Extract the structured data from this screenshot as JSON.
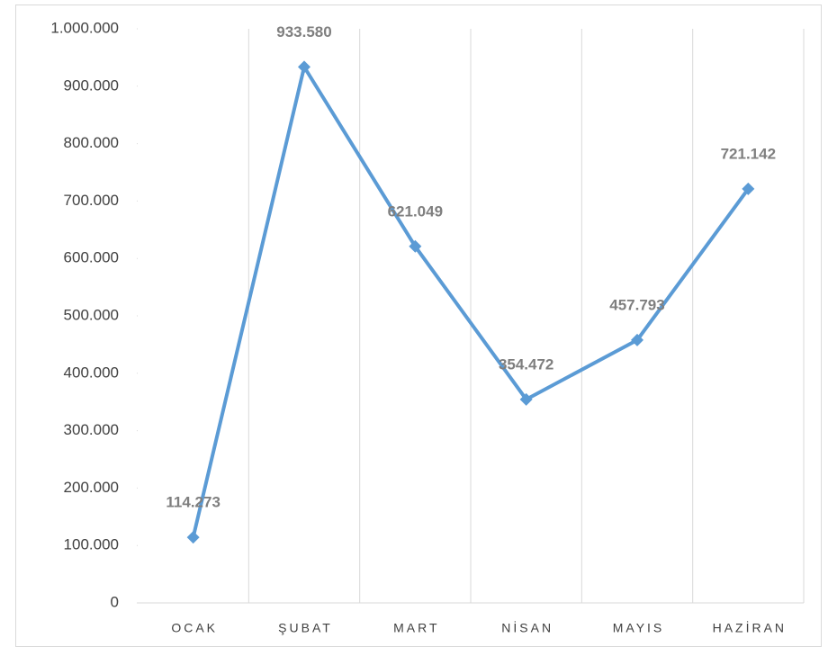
{
  "chart_data": {
    "type": "line",
    "categories": [
      "OCAK",
      "ŞUBAT",
      "MART",
      "NİSAN",
      "MAYIS",
      "HAZİRAN"
    ],
    "values": [
      114273,
      933580,
      621049,
      354472,
      457793,
      721142
    ],
    "value_labels": [
      "114.273",
      "933.580",
      "621.049",
      "354.472",
      "457.793",
      "721.142"
    ],
    "color": "#5b9bd5",
    "ylim": [
      0,
      1000000
    ],
    "yticks": [
      0,
      {
        "value": 100000,
        "label": "100.000"
      },
      {
        "value": 200000,
        "label": "200.000"
      },
      {
        "value": 300000,
        "label": "300.000"
      },
      {
        "value": 400000,
        "label": "400.000"
      },
      {
        "value": 500000,
        "label": "500.000"
      },
      {
        "value": 600000,
        "label": "600.000"
      },
      {
        "value": 700000,
        "label": "700.000"
      },
      {
        "value": 800000,
        "label": "800.000"
      },
      {
        "value": 900000,
        "label": "900.000"
      },
      {
        "value": 1000000,
        "label": "1.000.000"
      }
    ],
    "grid": false
  }
}
